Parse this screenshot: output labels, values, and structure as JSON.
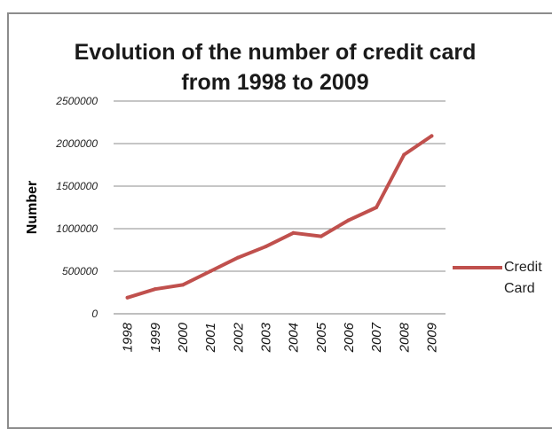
{
  "chart_data": {
    "type": "line",
    "title": "Evolution of the number of credit card from 1998 to 2009",
    "xlabel": "",
    "ylabel": "Number",
    "categories": [
      "1998",
      "1999",
      "2000",
      "2001",
      "2002",
      "2003",
      "2004",
      "2005",
      "2006",
      "2007",
      "2008",
      "2009"
    ],
    "series": [
      {
        "name": "Credit Card",
        "color": "#c0504d",
        "values": [
          190000,
          290000,
          340000,
          500000,
          660000,
          790000,
          950000,
          910000,
          1100000,
          1250000,
          1870000,
          2090000
        ]
      }
    ],
    "ylim": [
      0,
      2500000
    ],
    "yticks": [
      "0",
      "500000",
      "1000000",
      "1500000",
      "2000000",
      "2500000"
    ],
    "grid": "horizontal",
    "legend_position": "right"
  }
}
